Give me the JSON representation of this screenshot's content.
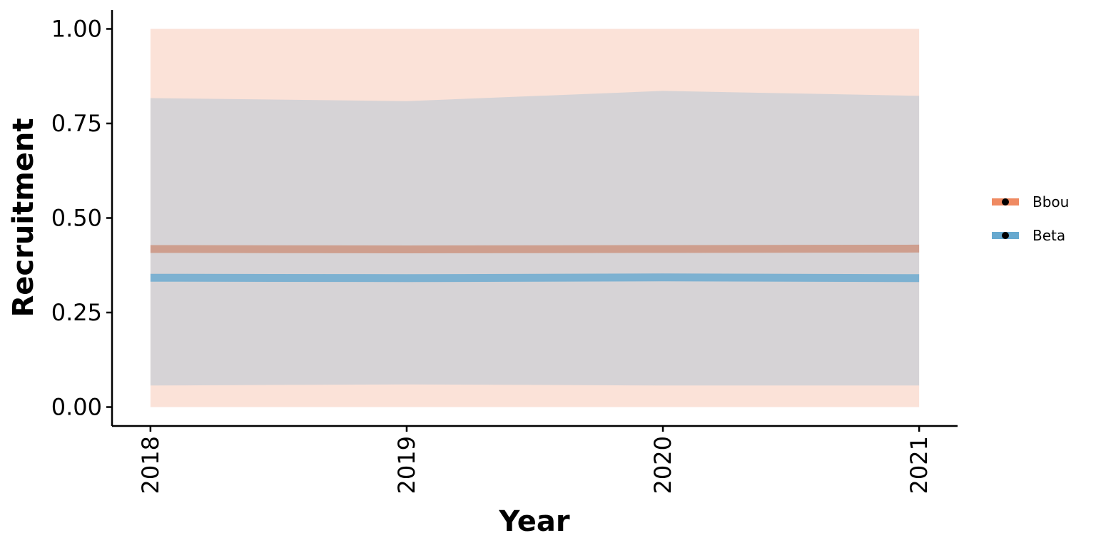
{
  "chart_data": {
    "type": "line",
    "x_label": "Year",
    "y_label": "Recruitment",
    "x": [
      2018,
      2019,
      2020,
      2021
    ],
    "xlim": [
      2017.85,
      2021.15
    ],
    "xticks": [
      2018,
      2019,
      2020,
      2021
    ],
    "ylim": [
      -0.05,
      1.05
    ],
    "yticks": [
      {
        "value": 0,
        "label": "0.00"
      },
      0.25,
      {
        "value": 0.5,
        "label": "0.50"
      },
      0.75,
      {
        "value": 1,
        "label": "1.00"
      }
    ],
    "grid": false,
    "legend": "right",
    "series": [
      {
        "name": "Bbou",
        "color": "#ef8a62",
        "values": [
          0.418,
          0.417,
          0.418,
          0.419
        ],
        "lower": [
          0,
          0,
          0,
          0
        ],
        "upper": [
          1,
          1,
          1,
          1
        ]
      },
      {
        "name": "Beta",
        "color": "#67a9cf",
        "values": [
          0.342,
          0.341,
          0.343,
          0.341
        ],
        "lower": [
          0.057,
          0.06,
          0.057,
          0.057
        ],
        "upper": [
          0.817,
          0.809,
          0.836,
          0.823
        ]
      }
    ]
  }
}
